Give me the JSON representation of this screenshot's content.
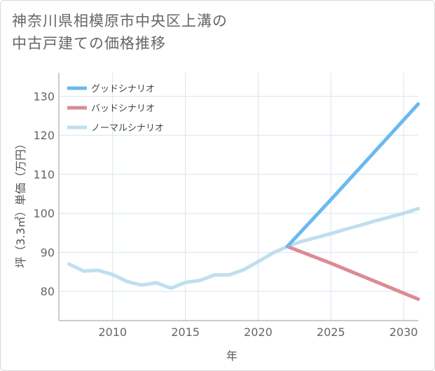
{
  "title": {
    "line1": "神奈川県相模原市中央区上溝の",
    "line2": "中古戸建ての価格推移"
  },
  "chart_data": {
    "type": "line",
    "xlabel": "年",
    "ylabel": "坪（3.3㎡）単価（万円）",
    "xlim": [
      2006.3,
      2031
    ],
    "ylim": [
      72.5,
      136
    ],
    "xticks": [
      2010,
      2015,
      2020,
      2025,
      2030
    ],
    "yticks": [
      80,
      90,
      100,
      110,
      120,
      130
    ],
    "grid": true,
    "legend_position": "top-left",
    "series": [
      {
        "name": "グッドシナリオ",
        "color": "#6ab9ef",
        "x": [
          2022,
          2025,
          2031
        ],
        "y": [
          91.5,
          103.5,
          128
        ]
      },
      {
        "name": "バッドシナリオ",
        "color": "#dc8a94",
        "x": [
          2022,
          2025,
          2031
        ],
        "y": [
          91.5,
          87.2,
          78
        ]
      },
      {
        "name": "ノーマルシナリオ",
        "color": "#bfdfee",
        "x": [
          2007,
          2008,
          2009,
          2010,
          2011,
          2012,
          2013,
          2014,
          2015,
          2016,
          2017,
          2018,
          2019,
          2020,
          2021,
          2022,
          2023,
          2024,
          2025,
          2026,
          2027,
          2028,
          2029,
          2030,
          2031
        ],
        "y": [
          87,
          85.2,
          85.4,
          84.3,
          82.5,
          81.6,
          82.2,
          80.8,
          82.3,
          82.8,
          84.2,
          84.2,
          85.5,
          87.6,
          89.8,
          91.5,
          92.8,
          93.8,
          94.8,
          95.9,
          96.9,
          98,
          99,
          100,
          101.2
        ]
      }
    ]
  }
}
